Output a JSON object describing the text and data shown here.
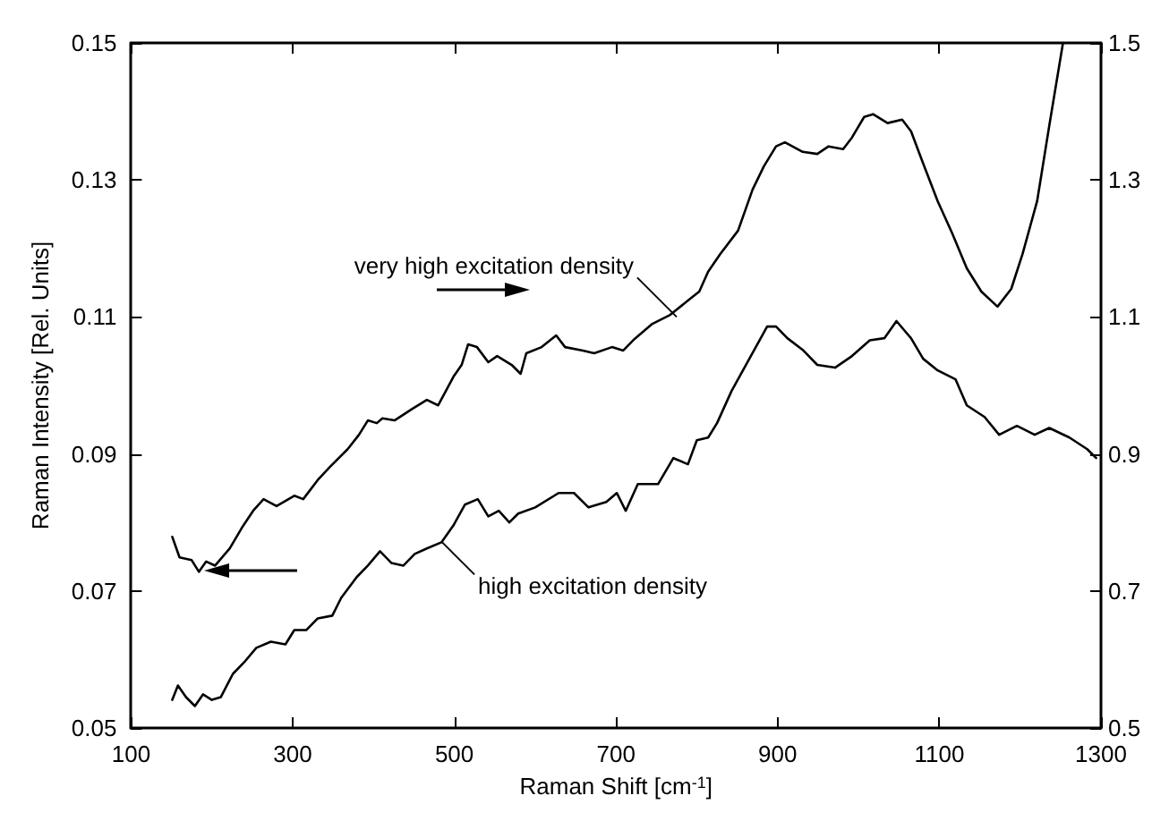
{
  "chart_data": {
    "type": "line",
    "xlabel": "Raman Shift [cm$^{-1}$]",
    "ylabel": "Raman Intensity [Rel. Units]",
    "xlim": [
      100,
      1300
    ],
    "xticks": [
      100,
      300,
      500,
      700,
      900,
      1100,
      1300
    ],
    "ylim": [
      0.05,
      0.15
    ],
    "yticks": [
      0.05,
      0.07,
      0.09,
      0.11,
      0.13,
      0.15
    ],
    "y2lim": [
      0.5,
      1.5
    ],
    "y2ticks": [
      0.5,
      0.7,
      0.9,
      1.1,
      1.3,
      1.5
    ],
    "grid": false,
    "legend": false,
    "marker": "none",
    "line_style": "solid",
    "series": [
      {
        "color": "#000000",
        "axis": "y2",
        "x": [
          151,
          160,
          175,
          184,
          193,
          204,
          222,
          237,
          251,
          264,
          280,
          302,
          313,
          331,
          346,
          368,
          382,
          393,
          404,
          411,
          426,
          448,
          466,
          480,
          499,
          509,
          517,
          528,
          542,
          553,
          571,
          582,
          589,
          608,
          626,
          637,
          659,
          673,
          695,
          709,
          723,
          745,
          767,
          789,
          803,
          814,
          829,
          851,
          869,
          883,
          898,
          909,
          931,
          949,
          963,
          981,
          992,
          1007,
          1018,
          1036,
          1054,
          1065,
          1080,
          1098,
          1116,
          1134,
          1152,
          1172,
          1189,
          1203,
          1221,
          1236,
          1253
        ],
        "values": [
          0.779,
          0.749,
          0.745,
          0.728,
          0.743,
          0.737,
          0.762,
          0.792,
          0.817,
          0.834,
          0.824,
          0.839,
          0.834,
          0.862,
          0.881,
          0.907,
          0.928,
          0.949,
          0.945,
          0.952,
          0.949,
          0.966,
          0.979,
          0.971,
          1.013,
          1.03,
          1.06,
          1.056,
          1.034,
          1.043,
          1.03,
          1.017,
          1.047,
          1.056,
          1.073,
          1.056,
          1.051,
          1.047,
          1.056,
          1.051,
          1.068,
          1.09,
          1.103,
          1.124,
          1.137,
          1.166,
          1.192,
          1.226,
          1.286,
          1.32,
          1.349,
          1.355,
          1.341,
          1.338,
          1.349,
          1.345,
          1.362,
          1.392,
          1.396,
          1.383,
          1.388,
          1.371,
          1.324,
          1.269,
          1.222,
          1.171,
          1.137,
          1.115,
          1.141,
          1.192,
          1.269,
          1.379,
          1.5
        ]
      },
      {
        "color": "#000000",
        "x": [
          151,
          158,
          168,
          179,
          189,
          200,
          211,
          226,
          240,
          255,
          273,
          291,
          302,
          317,
          331,
          349,
          360,
          379,
          393,
          408,
          422,
          437,
          451,
          466,
          484,
          499,
          513,
          529,
          542,
          555,
          568,
          579,
          600,
          629,
          648,
          666,
          688,
          701,
          712,
          727,
          752,
          771,
          789,
          800,
          814,
          825,
          843,
          865,
          887,
          898,
          912,
          931,
          949,
          971,
          992,
          1014,
          1032,
          1047,
          1065,
          1080,
          1098,
          1120,
          1134,
          1156,
          1174,
          1196,
          1218,
          1236,
          1261,
          1283,
          1294
        ],
        "values": [
          0.0541,
          0.0562,
          0.0545,
          0.0532,
          0.0549,
          0.0541,
          0.0545,
          0.0579,
          0.0596,
          0.0617,
          0.0626,
          0.0622,
          0.0643,
          0.0643,
          0.066,
          0.0664,
          0.069,
          0.072,
          0.0737,
          0.0758,
          0.0741,
          0.0737,
          0.0754,
          0.0762,
          0.0771,
          0.0796,
          0.0826,
          0.0834,
          0.0809,
          0.0817,
          0.08,
          0.0813,
          0.0822,
          0.0843,
          0.0843,
          0.0822,
          0.083,
          0.0843,
          0.0817,
          0.0856,
          0.0856,
          0.0894,
          0.0885,
          0.092,
          0.0924,
          0.0945,
          0.0992,
          0.1039,
          0.1086,
          0.1086,
          0.1069,
          0.1052,
          0.103,
          0.1026,
          0.1043,
          0.1066,
          0.1069,
          0.1094,
          0.1069,
          0.1039,
          0.1022,
          0.1009,
          0.0971,
          0.0954,
          0.0928,
          0.0941,
          0.0928,
          0.0938,
          0.0924,
          0.0907,
          0.0894
        ]
      }
    ],
    "annotations": [
      {
        "text": "very high excitation density",
        "x": 775,
        "y": 0.11
      },
      {
        "text": "high excitation density",
        "x": 485,
        "y": 0.0771
      }
    ]
  }
}
